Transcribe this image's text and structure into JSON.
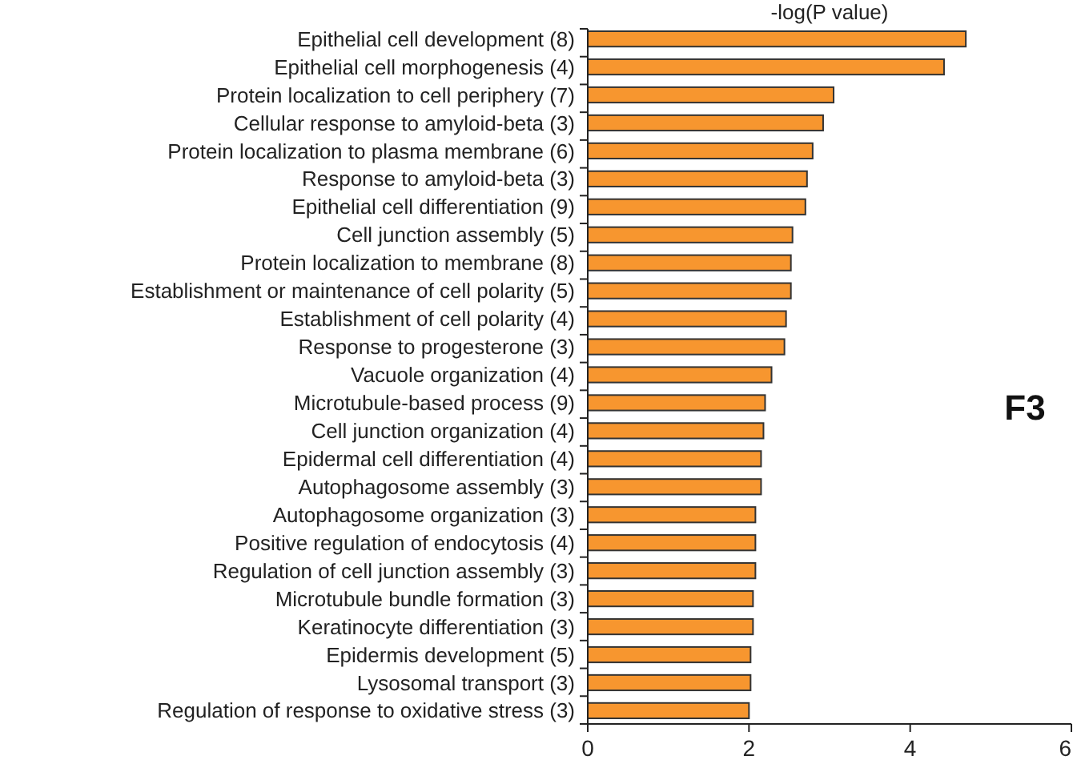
{
  "chart_data": {
    "type": "bar",
    "orientation": "horizontal",
    "title": "-log(P value)",
    "annotations": [
      "F3"
    ],
    "categories": [
      "Epithelial cell development (8)",
      "Epithelial cell morphogenesis (4)",
      "Protein localization to cell periphery (7)",
      "Cellular response to amyloid-beta (3)",
      "Protein localization to plasma membrane (6)",
      "Response to amyloid-beta (3)",
      "Epithelial cell differentiation (9)",
      "Cell junction assembly (5)",
      "Protein localization to membrane (8)",
      "Establishment or maintenance of cell polarity (5)",
      "Establishment of cell polarity (4)",
      "Response to progesterone (3)",
      "Vacuole organization (4)",
      "Microtubule-based process (9)",
      "Cell junction organization (4)",
      "Epidermal cell differentiation (4)",
      "Autophagosome assembly (3)",
      "Autophagosome organization (3)",
      "Positive regulation of endocytosis (4)",
      "Regulation of cell junction assembly (3)",
      "Microtubule bundle formation (3)",
      "Keratinocyte differentiation (3)",
      "Epidermis development (5)",
      "Lysosomal transport (3)",
      "Regulation of response to oxidative stress (3)"
    ],
    "values": [
      4.69,
      4.42,
      3.05,
      2.92,
      2.79,
      2.72,
      2.7,
      2.54,
      2.52,
      2.52,
      2.46,
      2.44,
      2.28,
      2.2,
      2.18,
      2.15,
      2.15,
      2.08,
      2.08,
      2.08,
      2.05,
      2.05,
      2.02,
      2.02,
      2.0
    ],
    "color": "#f7962f",
    "xlim": [
      0,
      6
    ],
    "xticks": [
      0,
      2,
      4,
      6
    ],
    "grid": false
  }
}
